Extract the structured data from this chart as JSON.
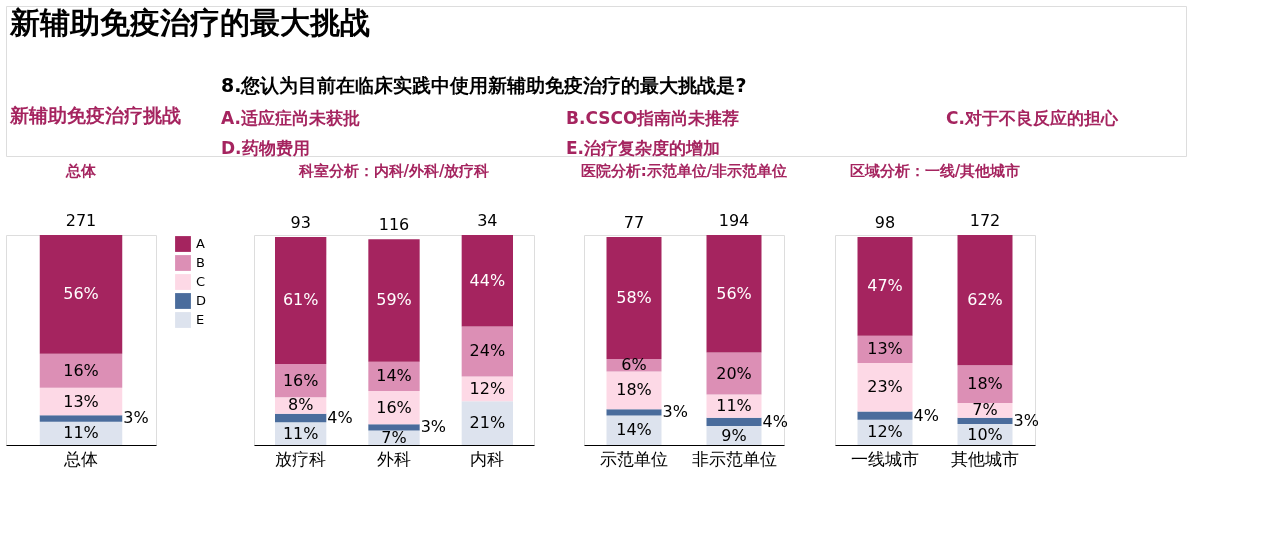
{
  "chart_data": [
    {
      "type": "other",
      "title": "新辅助免疫治疗的最大挑战",
      "annotations": [
        "新辅助免疫治疗挑战",
        "8.您认为目前在临床实践中使用新辅助免疫治疗的最大挑战是?",
        "A.适应症尚未获批",
        "B.CSCO指南尚未推荐",
        "C.对于不良反应的担心",
        "D.药物费用",
        "E.治疗复杂度的增加"
      ]
    },
    {
      "type": "bar",
      "title": "总体",
      "categories": [
        "总体"
      ],
      "stacked": true,
      "legend": "right",
      "annotations": [
        "271"
      ],
      "series": [
        {
          "name": "E",
          "color": "#dde3ee",
          "values": [
            11
          ],
          "value_labels": [
            "11%"
          ]
        },
        {
          "name": "D",
          "color": "#4a6c9c",
          "values": [
            3
          ],
          "value_labels": [
            "3%"
          ]
        },
        {
          "name": "C",
          "color": "#fdd9e6",
          "values": [
            13
          ],
          "value_labels": [
            "13%"
          ]
        },
        {
          "name": "B",
          "color": "#dc8fb5",
          "values": [
            16
          ],
          "value_labels": [
            "16%"
          ]
        },
        {
          "name": "A",
          "color": "#a5245f",
          "values": [
            56
          ],
          "value_labels": [
            "56%"
          ]
        }
      ]
    },
    {
      "type": "bar",
      "title": "科室分析：内科/外科/放疗科",
      "categories": [
        "放疗科",
        "外科",
        "内科"
      ],
      "stacked": true,
      "annotations": [
        "93",
        "116",
        "34"
      ],
      "series": [
        {
          "color": "#dde3ee",
          "values": [
            11,
            7,
            21
          ],
          "value_labels": [
            "11%",
            "7%",
            "21%"
          ]
        },
        {
          "color": "#4a6c9c",
          "values": [
            4,
            3,
            0
          ],
          "value_labels": [
            "4%",
            "3%",
            null
          ]
        },
        {
          "color": "#fdd9e6",
          "values": [
            8,
            16,
            12
          ],
          "value_labels": [
            "8%",
            "16%",
            "12%"
          ]
        },
        {
          "color": "#dc8fb5",
          "values": [
            16,
            14,
            24
          ],
          "value_labels": [
            "16%",
            "14%",
            "24%"
          ]
        },
        {
          "color": "#a5245f",
          "values": [
            61,
            59,
            44
          ],
          "value_labels": [
            "61%",
            "59%",
            "44%"
          ]
        }
      ]
    },
    {
      "type": "bar",
      "title": "医院分析:示范单位/非示范单位",
      "categories": [
        "示范单位",
        "非示范单位"
      ],
      "stacked": true,
      "annotations": [
        "77",
        "194"
      ],
      "series": [
        {
          "color": "#dde3ee",
          "values": [
            14,
            9
          ],
          "value_labels": [
            "14%",
            "9%"
          ]
        },
        {
          "color": "#4a6c9c",
          "values": [
            3,
            4
          ],
          "value_labels": [
            "3%",
            "4%"
          ]
        },
        {
          "color": "#fdd9e6",
          "values": [
            18,
            11
          ],
          "value_labels": [
            "18%",
            "11%"
          ]
        },
        {
          "color": "#dc8fb5",
          "values": [
            6,
            20
          ],
          "value_labels": [
            "6%",
            "20%"
          ]
        },
        {
          "color": "#a5245f",
          "values": [
            58,
            56
          ],
          "value_labels": [
            "58%",
            "56%"
          ]
        }
      ]
    },
    {
      "type": "bar",
      "title": "区域分析：一线/其他城市",
      "categories": [
        "一线城市",
        "其他城市"
      ],
      "stacked": true,
      "annotations": [
        "98",
        "172"
      ],
      "series": [
        {
          "color": "#dde3ee",
          "values": [
            12,
            10
          ],
          "value_labels": [
            "12%",
            "10%"
          ]
        },
        {
          "color": "#4a6c9c",
          "values": [
            4,
            3
          ],
          "value_labels": [
            "4%",
            "3%"
          ]
        },
        {
          "color": "#fdd9e6",
          "values": [
            23,
            7
          ],
          "value_labels": [
            "23%",
            "7%"
          ]
        },
        {
          "color": "#dc8fb5",
          "values": [
            13,
            18
          ],
          "value_labels": [
            "13%",
            "18%"
          ]
        },
        {
          "color": "#a5245f",
          "values": [
            47,
            62
          ],
          "value_labels": [
            "47%",
            "62%"
          ]
        }
      ]
    }
  ]
}
